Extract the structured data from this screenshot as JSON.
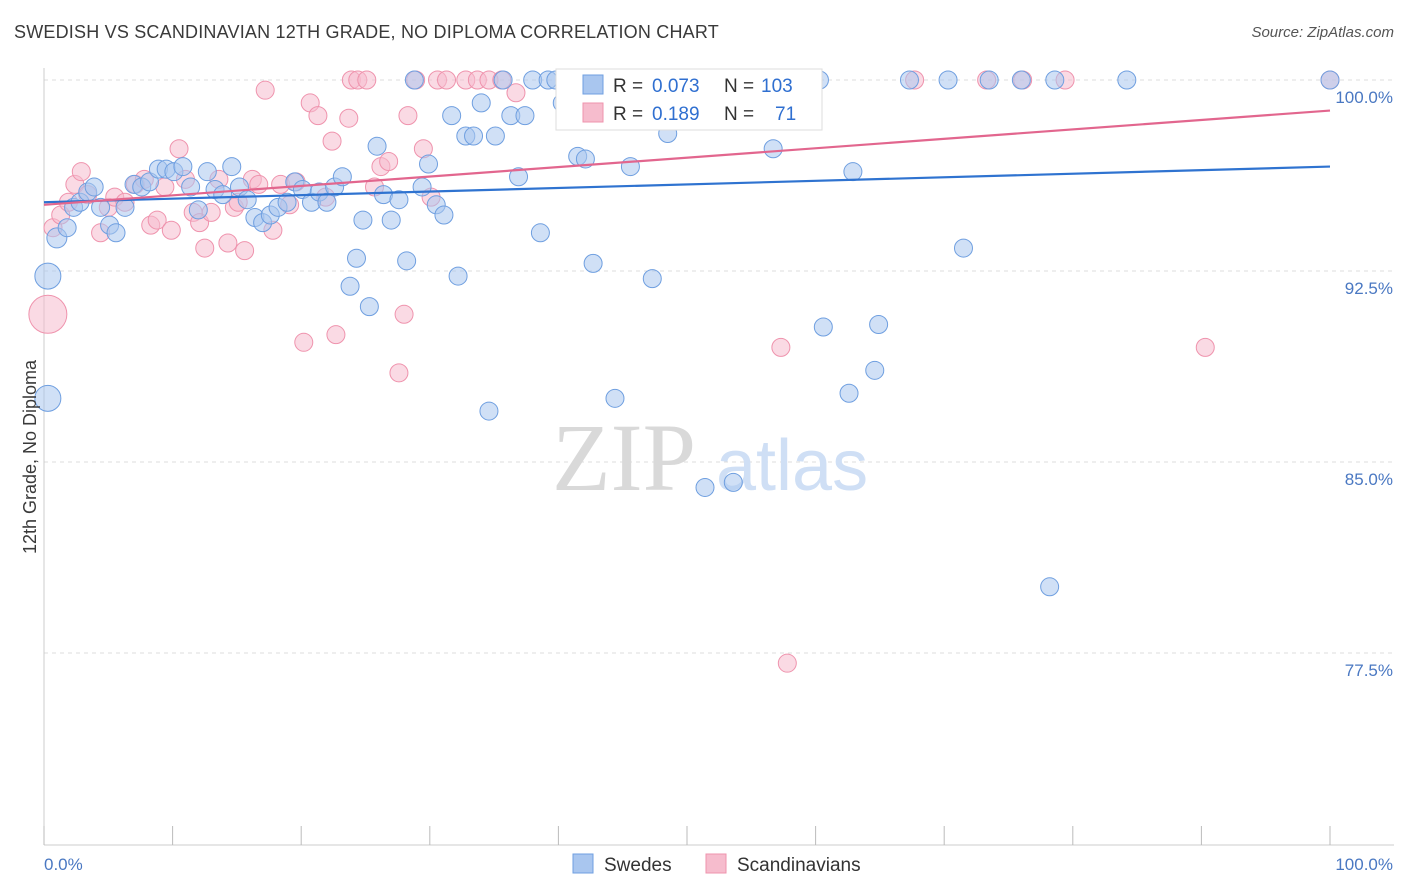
{
  "title": "SWEDISH VS SCANDINAVIAN 12TH GRADE, NO DIPLOMA CORRELATION CHART",
  "source": "Source: ZipAtlas.com",
  "watermark": {
    "zip": "ZIP",
    "atlas": "atlas"
  },
  "colors": {
    "swedes_fill": "#a9c6ef",
    "swedes_stroke": "#6f9fe0",
    "swedes_line": "#2f73d0",
    "scand_fill": "#f6bccd",
    "scand_stroke": "#ef93ad",
    "scand_line": "#e2668e",
    "tick_text": "#4a78c2",
    "grid": "#dddddd"
  },
  "legend": {
    "r_label": "R =",
    "n_label": "N =",
    "rows": [
      {
        "r": "0.073",
        "n": "103"
      },
      {
        "r": "0.189",
        "n": "71"
      }
    ]
  },
  "chart_data": {
    "type": "scatter",
    "title": "SWEDISH VS SCANDINAVIAN 12TH GRADE, NO DIPLOMA CORRELATION CHART",
    "xlabel": "",
    "ylabel": "12th Grade, No Diploma",
    "xlim": [
      0,
      100
    ],
    "ylim": [
      70,
      100.7
    ],
    "x_tick_labels": [
      "0.0%",
      "100.0%"
    ],
    "y_ticks": [
      100.0,
      92.5,
      85.0,
      77.5
    ],
    "y_tick_labels": [
      "100.0%",
      "92.5%",
      "85.0%",
      "77.5%"
    ],
    "grid": "horizontal dashed",
    "legend_position": "top-center",
    "series": [
      {
        "name": "Swedes",
        "trend": [
          [
            0,
            95.2
          ],
          [
            100,
            96.6
          ]
        ],
        "points": [
          [
            1.0,
            93.8,
            9
          ],
          [
            1.8,
            94.2,
            8
          ],
          [
            2.3,
            95.0,
            8
          ],
          [
            2.8,
            95.2,
            8
          ],
          [
            3.4,
            95.6,
            8
          ],
          [
            3.9,
            95.8,
            8
          ],
          [
            4.4,
            95.0,
            8
          ],
          [
            5.1,
            94.3,
            8
          ],
          [
            5.6,
            94.0,
            8
          ],
          [
            6.3,
            95.0,
            8
          ],
          [
            7.0,
            95.9,
            8
          ],
          [
            7.6,
            95.8,
            8
          ],
          [
            8.2,
            96.0,
            8
          ],
          [
            8.9,
            96.5,
            8
          ],
          [
            9.5,
            96.5,
            8
          ],
          [
            10.1,
            96.4,
            8
          ],
          [
            10.8,
            96.6,
            8
          ],
          [
            11.4,
            95.8,
            8
          ],
          [
            12.0,
            94.9,
            8
          ],
          [
            12.7,
            96.4,
            8
          ],
          [
            13.3,
            95.7,
            8
          ],
          [
            13.9,
            95.5,
            8
          ],
          [
            14.6,
            96.6,
            8
          ],
          [
            15.2,
            95.8,
            8
          ],
          [
            15.8,
            95.3,
            8
          ],
          [
            16.4,
            94.6,
            8
          ],
          [
            17.0,
            94.4,
            8
          ],
          [
            17.6,
            94.7,
            8
          ],
          [
            18.2,
            95.0,
            8
          ],
          [
            18.9,
            95.2,
            8
          ],
          [
            19.5,
            96.0,
            8
          ],
          [
            20.1,
            95.7,
            8
          ],
          [
            20.8,
            95.2,
            8
          ],
          [
            21.4,
            95.6,
            8
          ],
          [
            22.0,
            95.2,
            8
          ],
          [
            22.6,
            95.8,
            8
          ],
          [
            23.2,
            96.2,
            8
          ],
          [
            23.8,
            91.9,
            8
          ],
          [
            24.3,
            93.0,
            8
          ],
          [
            24.8,
            94.5,
            8
          ],
          [
            25.3,
            91.1,
            8
          ],
          [
            25.9,
            97.4,
            8
          ],
          [
            26.4,
            95.5,
            8
          ],
          [
            27.0,
            94.5,
            8
          ],
          [
            27.6,
            95.3,
            8
          ],
          [
            28.2,
            92.9,
            8
          ],
          [
            28.8,
            100.0,
            8
          ],
          [
            29.4,
            95.8,
            8
          ],
          [
            29.9,
            96.7,
            8
          ],
          [
            30.5,
            95.1,
            8
          ],
          [
            31.1,
            94.7,
            8
          ],
          [
            31.7,
            98.6,
            8
          ],
          [
            32.2,
            92.3,
            8
          ],
          [
            32.8,
            97.8,
            8
          ],
          [
            33.4,
            97.8,
            8
          ],
          [
            34.0,
            99.1,
            8
          ],
          [
            34.6,
            87.0,
            8
          ],
          [
            35.1,
            97.8,
            8
          ],
          [
            35.7,
            100.0,
            8
          ],
          [
            36.3,
            98.6,
            8
          ],
          [
            36.9,
            96.2,
            8
          ],
          [
            37.4,
            98.6,
            8
          ],
          [
            38.0,
            100.0,
            8
          ],
          [
            38.6,
            94.0,
            8
          ],
          [
            39.2,
            100.0,
            8
          ],
          [
            39.8,
            100.0,
            8
          ],
          [
            40.3,
            99.1,
            8
          ],
          [
            40.9,
            100.0,
            8
          ],
          [
            41.5,
            97.0,
            8
          ],
          [
            42.1,
            96.9,
            8
          ],
          [
            42.7,
            92.8,
            8
          ],
          [
            43.2,
            100.0,
            8
          ],
          [
            43.8,
            100.0,
            8
          ],
          [
            44.4,
            87.5,
            8
          ],
          [
            45.0,
            100.0,
            8
          ],
          [
            45.6,
            96.6,
            8
          ],
          [
            46.1,
            100.0,
            8
          ],
          [
            46.7,
            100.0,
            8
          ],
          [
            47.3,
            92.2,
            8
          ],
          [
            47.9,
            100.0,
            8
          ],
          [
            48.5,
            97.9,
            8
          ],
          [
            49.0,
            100.0,
            8
          ],
          [
            49.6,
            100.0,
            8
          ],
          [
            50.2,
            100.0,
            8
          ],
          [
            50.8,
            100.0,
            8
          ],
          [
            51.4,
            84.0,
            8
          ],
          [
            52.0,
            100.0,
            8
          ],
          [
            53.6,
            84.2,
            8
          ],
          [
            55.6,
            100.0,
            8
          ],
          [
            56.7,
            97.3,
            8
          ],
          [
            57.7,
            100.0,
            8
          ],
          [
            58.0,
            100.0,
            8
          ],
          [
            60.3,
            100.0,
            8
          ],
          [
            60.6,
            90.3,
            8
          ],
          [
            62.6,
            87.7,
            8
          ],
          [
            62.9,
            96.4,
            8
          ],
          [
            64.6,
            88.6,
            8
          ],
          [
            64.9,
            90.4,
            8
          ],
          [
            67.3,
            100.0,
            8
          ],
          [
            70.3,
            100.0,
            8
          ],
          [
            71.5,
            93.4,
            8
          ],
          [
            73.5,
            100.0,
            8
          ],
          [
            76.0,
            100.0,
            8
          ],
          [
            78.6,
            100.0,
            8
          ],
          [
            78.2,
            80.1,
            8
          ],
          [
            84.2,
            100.0,
            8
          ],
          [
            100.0,
            100.0,
            8
          ],
          [
            0.3,
            92.3,
            12
          ],
          [
            0.3,
            87.5,
            12
          ]
        ]
      },
      {
        "name": "Scandinavians",
        "trend": [
          [
            0,
            95.1
          ],
          [
            100,
            98.8
          ]
        ],
        "points": [
          [
            0.3,
            90.8,
            18
          ],
          [
            0.7,
            94.2,
            8
          ],
          [
            1.3,
            94.7,
            8
          ],
          [
            1.9,
            95.2,
            8
          ],
          [
            2.4,
            95.9,
            8
          ],
          [
            2.9,
            96.4,
            8
          ],
          [
            3.4,
            95.5,
            8
          ],
          [
            4.4,
            94.0,
            8
          ],
          [
            5.0,
            95.0,
            8
          ],
          [
            5.5,
            95.4,
            8
          ],
          [
            6.3,
            95.2,
            8
          ],
          [
            7.1,
            95.9,
            8
          ],
          [
            7.8,
            96.1,
            8
          ],
          [
            8.3,
            94.3,
            8
          ],
          [
            8.8,
            94.5,
            8
          ],
          [
            9.4,
            95.8,
            8
          ],
          [
            9.9,
            94.1,
            8
          ],
          [
            10.5,
            97.3,
            8
          ],
          [
            11.0,
            96.1,
            8
          ],
          [
            11.6,
            94.8,
            8
          ],
          [
            12.1,
            94.4,
            8
          ],
          [
            12.5,
            93.4,
            8
          ],
          [
            13.0,
            94.8,
            8
          ],
          [
            13.6,
            96.1,
            8
          ],
          [
            14.3,
            93.6,
            8
          ],
          [
            14.8,
            95.0,
            8
          ],
          [
            15.1,
            95.2,
            8
          ],
          [
            15.6,
            93.3,
            8
          ],
          [
            16.2,
            96.1,
            8
          ],
          [
            16.7,
            95.9,
            8
          ],
          [
            17.2,
            99.6,
            8
          ],
          [
            17.8,
            94.1,
            8
          ],
          [
            18.4,
            95.9,
            8
          ],
          [
            19.1,
            95.1,
            8
          ],
          [
            19.6,
            96.0,
            8
          ],
          [
            20.2,
            89.7,
            8
          ],
          [
            20.7,
            99.1,
            8
          ],
          [
            21.3,
            98.6,
            8
          ],
          [
            21.9,
            95.4,
            8
          ],
          [
            22.4,
            97.6,
            8
          ],
          [
            22.7,
            90.0,
            8
          ],
          [
            23.7,
            98.5,
            8
          ],
          [
            23.9,
            100.0,
            8
          ],
          [
            24.4,
            100.0,
            8
          ],
          [
            25.1,
            100.0,
            8
          ],
          [
            25.7,
            95.8,
            8
          ],
          [
            26.2,
            96.6,
            8
          ],
          [
            26.8,
            96.8,
            8
          ],
          [
            27.6,
            88.5,
            8
          ],
          [
            28.0,
            90.8,
            8
          ],
          [
            28.3,
            98.6,
            8
          ],
          [
            28.9,
            100.0,
            8
          ],
          [
            29.5,
            97.3,
            8
          ],
          [
            30.1,
            95.4,
            8
          ],
          [
            30.6,
            100.0,
            8
          ],
          [
            31.3,
            100.0,
            8
          ],
          [
            32.8,
            100.0,
            8
          ],
          [
            33.7,
            100.0,
            8
          ],
          [
            34.6,
            100.0,
            8
          ],
          [
            35.6,
            100.0,
            8
          ],
          [
            36.7,
            99.5,
            8
          ],
          [
            40.5,
            100.0,
            8
          ],
          [
            44.0,
            100.0,
            8
          ],
          [
            50.0,
            100.0,
            8
          ],
          [
            52.0,
            100.0,
            8
          ],
          [
            57.3,
            89.5,
            8
          ],
          [
            57.8,
            77.1,
            8
          ],
          [
            67.7,
            100.0,
            8
          ],
          [
            73.3,
            100.0,
            8
          ],
          [
            76.1,
            100.0,
            8
          ],
          [
            79.4,
            100.0,
            8
          ],
          [
            90.3,
            89.5,
            8
          ],
          [
            100.0,
            100.0,
            8
          ]
        ]
      }
    ]
  },
  "bottom_legend": [
    {
      "label": "Swedes"
    },
    {
      "label": "Scandinavians"
    }
  ]
}
